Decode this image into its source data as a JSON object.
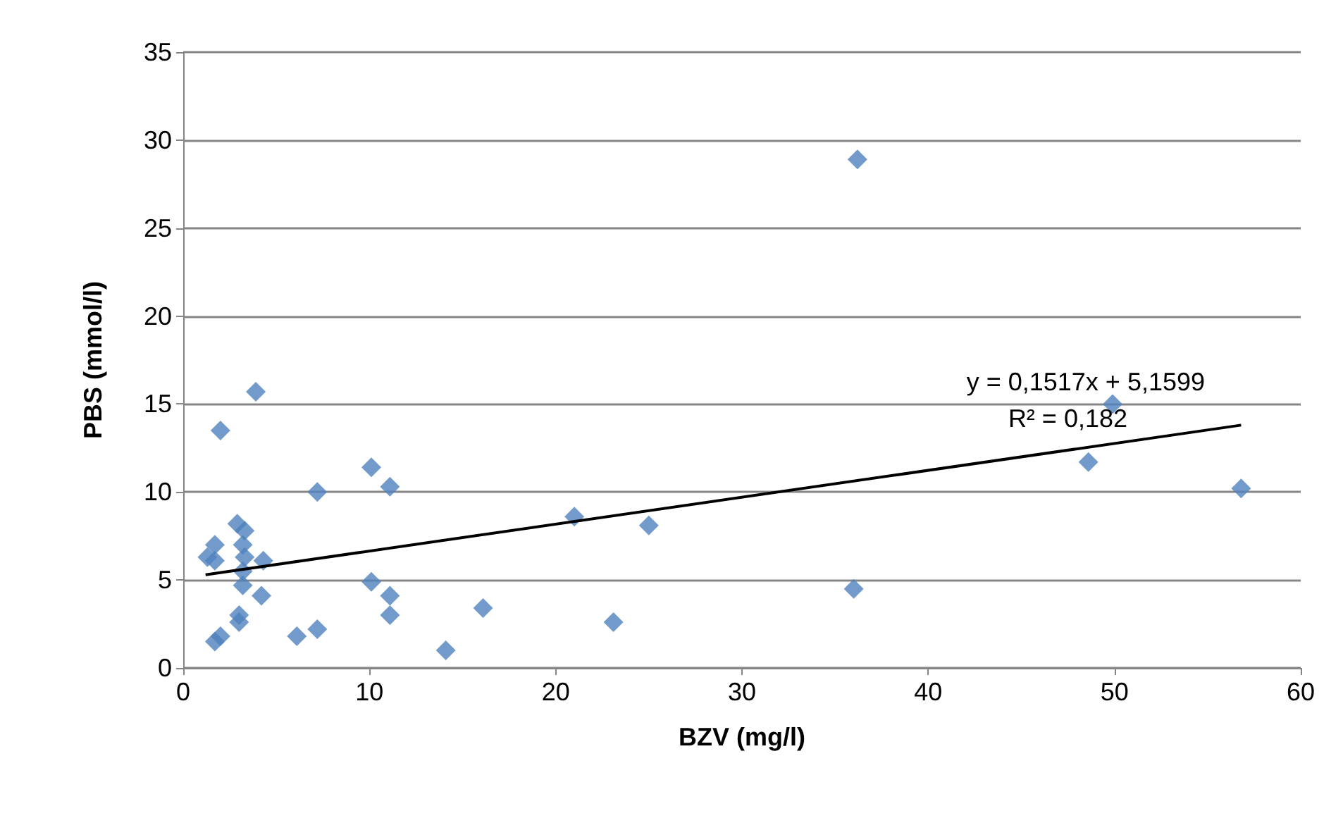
{
  "chart_data": {
    "type": "scatter",
    "xlabel": "BZV (mg/l)",
    "ylabel": "PBS (mmol/l)",
    "xlim": [
      0,
      60
    ],
    "xticks": [
      0,
      10,
      20,
      30,
      40,
      50,
      60
    ],
    "ylim": [
      0,
      35
    ],
    "yticks": [
      0,
      5,
      10,
      15,
      20,
      25,
      30,
      35
    ],
    "grid": "y",
    "marker": "diamond",
    "series": [
      {
        "color": "#4f81bd",
        "x": [
          36.2,
          3.9,
          2.0,
          49.9,
          48.6,
          56.8,
          10.1,
          11.1,
          7.2,
          21.0,
          25.0,
          36.0,
          23.1,
          16.1,
          14.1,
          10.1,
          11.1,
          11.1,
          6.1,
          7.2,
          4.2,
          2.9,
          3.3,
          1.7,
          1.3,
          1.7,
          3.2,
          3.3,
          4.3,
          3.2,
          3.2,
          3.0,
          3.0,
          1.7,
          2.0
        ],
        "values": [
          28.9,
          15.7,
          13.5,
          15.0,
          11.7,
          10.2,
          11.4,
          10.3,
          10.0,
          8.6,
          8.1,
          4.5,
          2.6,
          3.4,
          1.0,
          4.9,
          4.1,
          3.0,
          1.8,
          2.2,
          4.1,
          8.2,
          7.8,
          7.0,
          6.3,
          6.1,
          7.0,
          6.3,
          6.1,
          5.5,
          4.7,
          3.0,
          2.6,
          1.5,
          1.8
        ]
      },
      {
        "type": "line",
        "color": "#000000",
        "marker": "none",
        "x": [
          1.2,
          56.8
        ],
        "values": [
          5.3,
          13.8
        ]
      }
    ],
    "annotations": [
      "y = 0,1517x + 5,1599",
      "R² = 0,182"
    ]
  }
}
